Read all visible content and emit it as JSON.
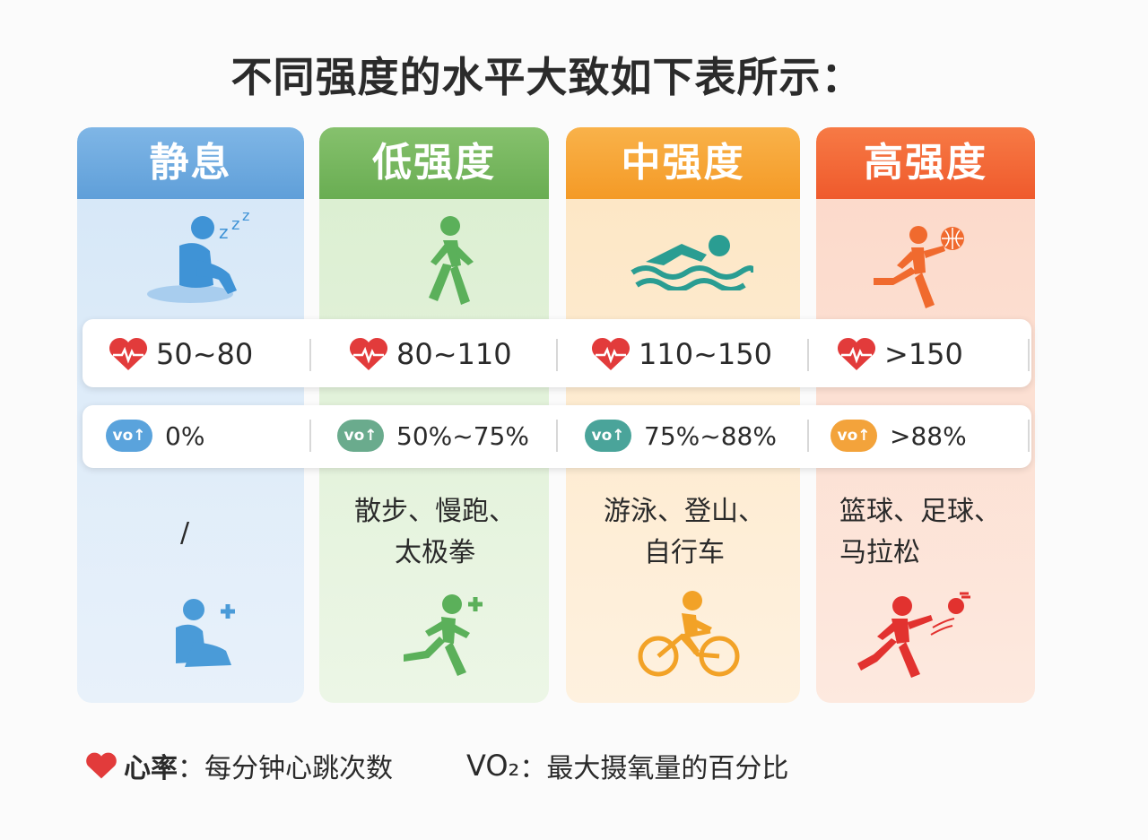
{
  "title": "不同强度的水平大致如下表所示：",
  "columns": [
    {
      "name": "静息",
      "heart_rate": "50~80",
      "vo2": "0%",
      "activities_line1": "/",
      "activities_line2": "",
      "header_color": "#6aa8de",
      "accent": "#4a9bd8",
      "icon_top": "sleeping-person-icon",
      "icon_bottom": "resting-person-icon"
    },
    {
      "name": "低强度",
      "heart_rate": "80~110",
      "vo2": "50%~75%",
      "activities_line1": "散步、慢跑、",
      "activities_line2": "太极拳",
      "header_color": "#74b65c",
      "accent": "#5bb05a",
      "icon_top": "walking-person-icon",
      "icon_bottom": "running-person-icon"
    },
    {
      "name": "中强度",
      "heart_rate": "110~150",
      "vo2": "75%~88%",
      "activities_line1": "游泳、登山、",
      "activities_line2": "自行车",
      "header_color": "#f6a432",
      "accent": "#f2a227",
      "icon_top": "swimming-person-icon",
      "icon_bottom": "cycling-person-icon"
    },
    {
      "name": "高强度",
      "heart_rate": ">150",
      "vo2": ">88%",
      "activities_line1": "篮球、足球、",
      "activities_line2": "马拉松",
      "header_color": "#f26634",
      "accent": "#f06a2e",
      "icon_top": "basketball-player-icon",
      "icon_bottom": "soccer-player-icon"
    }
  ],
  "vo_label": "vo↑",
  "legend": {
    "heart_label": "心率",
    "heart_desc": "：每分钟心跳次数",
    "vo2_label": "VO₂",
    "vo2_desc": "：最大摄氧量的百分比"
  },
  "colors": {
    "heart": "#e23b3b",
    "vo_badge_rest": "#5aa3dc",
    "vo_badge_low": "#6aab8d",
    "vo_badge_mid": "#4aa49a",
    "vo_badge_high": "#f3a33b"
  }
}
